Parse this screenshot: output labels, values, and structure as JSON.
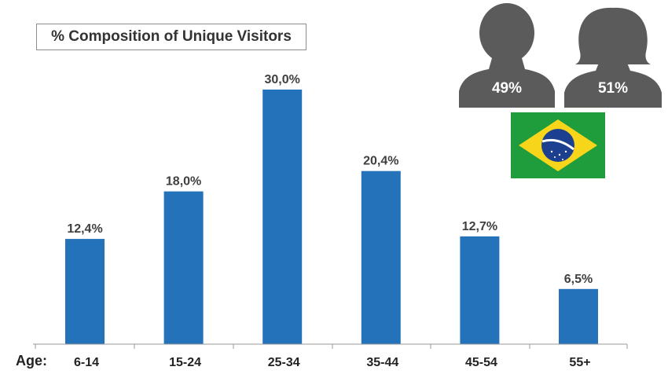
{
  "title": "% Composition of Unique Visitors",
  "gender": {
    "male_pct": "49%",
    "female_pct": "51%"
  },
  "colors": {
    "bar": "#2472ba",
    "silhouette": "#5b5b5b",
    "flag_green": "#1f9c3c",
    "flag_yellow": "#f7d51b",
    "flag_blue": "#1d3f8f"
  },
  "icons": [
    "male-silhouette-icon",
    "female-silhouette-icon",
    "brazil-flag-icon"
  ],
  "chart_data": {
    "type": "bar",
    "xlabel": "Age:",
    "categories": [
      "6-14",
      "15-24",
      "25-34",
      "35-44",
      "45-54",
      "55+"
    ],
    "values": [
      12.4,
      18.0,
      30.0,
      20.4,
      12.7,
      6.5
    ],
    "value_labels": [
      "12,4%",
      "18,0%",
      "30,0%",
      "20,4%",
      "12,7%",
      "6,5%"
    ],
    "ylim": [
      0,
      30
    ],
    "grid": false,
    "legend": "none"
  }
}
